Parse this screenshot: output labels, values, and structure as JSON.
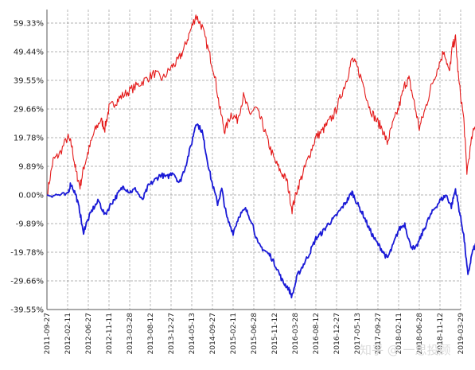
{
  "chart_data": {
    "type": "line",
    "ylim": [
      -39.55,
      64.0
    ],
    "grid": true,
    "yticks": [
      {
        "value": 59.33,
        "label": "59.33%"
      },
      {
        "value": 49.44,
        "label": "49.44%"
      },
      {
        "value": 39.55,
        "label": "39.55%"
      },
      {
        "value": 29.66,
        "label": "29.66%"
      },
      {
        "value": 19.78,
        "label": "19.78%"
      },
      {
        "value": 9.89,
        "label": "9.89%"
      },
      {
        "value": 0.0,
        "label": "0.00%"
      },
      {
        "value": -9.89,
        "label": "-9.89%"
      },
      {
        "value": -19.78,
        "label": "-19.78%"
      },
      {
        "value": -29.66,
        "label": "-29.66%"
      },
      {
        "value": -39.55,
        "label": "-39.55%"
      }
    ],
    "xticks": [
      "2011-09-27",
      "2012-02-11",
      "2012-06-27",
      "2012-11-11",
      "2013-03-28",
      "2013-08-12",
      "2013-12-27",
      "2014-05-13",
      "2014-09-27",
      "2015-02-11",
      "2015-06-28",
      "2015-11-12",
      "2016-03-28",
      "2016-08-12",
      "2016-12-27",
      "2017-05-13",
      "2017-09-27",
      "2018-02-11",
      "2018-06-28",
      "2018-11-12",
      "2019-03-29"
    ],
    "colors": {
      "red_series": "#e41a1a",
      "blue_series": "#1a1ad6",
      "grid": "#9a9a9a",
      "axis": "#555555"
    },
    "series": [
      {
        "color": "#e41a1a",
        "points": [
          [
            0,
            0
          ],
          [
            0.3,
            12
          ],
          [
            0.6,
            14
          ],
          [
            1.0,
            20
          ],
          [
            1.2,
            17
          ],
          [
            1.4,
            8
          ],
          [
            1.6,
            3
          ],
          [
            1.8,
            10
          ],
          [
            2.0,
            15
          ],
          [
            2.3,
            22
          ],
          [
            2.6,
            26
          ],
          [
            2.8,
            23
          ],
          [
            3.0,
            30
          ],
          [
            3.3,
            32
          ],
          [
            3.6,
            34
          ],
          [
            4.0,
            36
          ],
          [
            4.4,
            38
          ],
          [
            4.8,
            40
          ],
          [
            5.2,
            42
          ],
          [
            5.6,
            40
          ],
          [
            6.0,
            44
          ],
          [
            6.3,
            46
          ],
          [
            6.6,
            50
          ],
          [
            6.9,
            56
          ],
          [
            7.2,
            62
          ],
          [
            7.5,
            58
          ],
          [
            7.8,
            50
          ],
          [
            8.1,
            42
          ],
          [
            8.35,
            30
          ],
          [
            8.6,
            22
          ],
          [
            8.9,
            28
          ],
          [
            9.2,
            26
          ],
          [
            9.5,
            34
          ],
          [
            9.8,
            28
          ],
          [
            10.1,
            30
          ],
          [
            10.4,
            25
          ],
          [
            10.7,
            18
          ],
          [
            11.0,
            12
          ],
          [
            11.3,
            8
          ],
          [
            11.6,
            5
          ],
          [
            11.85,
            -5
          ],
          [
            12.1,
            2
          ],
          [
            12.4,
            8
          ],
          [
            12.7,
            14
          ],
          [
            13.0,
            20
          ],
          [
            13.3,
            22
          ],
          [
            13.6,
            25
          ],
          [
            13.9,
            28
          ],
          [
            14.2,
            34
          ],
          [
            14.5,
            40
          ],
          [
            14.75,
            47
          ],
          [
            15.0,
            44
          ],
          [
            15.3,
            38
          ],
          [
            15.6,
            30
          ],
          [
            15.9,
            26
          ],
          [
            16.2,
            23
          ],
          [
            16.45,
            18
          ],
          [
            16.7,
            24
          ],
          [
            17.0,
            30
          ],
          [
            17.3,
            38
          ],
          [
            17.5,
            40
          ],
          [
            17.75,
            32
          ],
          [
            18.0,
            23
          ],
          [
            18.3,
            30
          ],
          [
            18.6,
            38
          ],
          [
            18.9,
            44
          ],
          [
            19.2,
            50
          ],
          [
            19.45,
            42
          ],
          [
            19.6,
            51
          ],
          [
            19.75,
            54
          ],
          [
            19.9,
            40
          ],
          [
            20.15,
            26
          ],
          [
            20.3,
            8
          ],
          [
            20.55,
            20
          ],
          [
            20.8,
            26
          ],
          [
            21.05,
            32
          ]
        ]
      },
      {
        "color": "#1a1ad6",
        "points": [
          [
            0,
            0
          ],
          [
            0.5,
            0
          ],
          [
            1.0,
            0
          ],
          [
            1.15,
            4
          ],
          [
            1.4,
            0
          ],
          [
            1.6,
            -6
          ],
          [
            1.75,
            -13
          ],
          [
            1.9,
            -10
          ],
          [
            2.2,
            -5
          ],
          [
            2.5,
            -2
          ],
          [
            2.8,
            -7
          ],
          [
            3.1,
            -3
          ],
          [
            3.4,
            0
          ],
          [
            3.7,
            3
          ],
          [
            4.0,
            1
          ],
          [
            4.3,
            2
          ],
          [
            4.6,
            -2
          ],
          [
            4.9,
            3
          ],
          [
            5.2,
            5
          ],
          [
            5.5,
            7
          ],
          [
            5.8,
            6
          ],
          [
            6.1,
            8
          ],
          [
            6.4,
            4
          ],
          [
            6.7,
            10
          ],
          [
            7.0,
            18
          ],
          [
            7.2,
            25
          ],
          [
            7.5,
            22
          ],
          [
            7.7,
            14
          ],
          [
            7.95,
            5
          ],
          [
            8.25,
            -3
          ],
          [
            8.45,
            2
          ],
          [
            8.7,
            -8
          ],
          [
            9.0,
            -13
          ],
          [
            9.3,
            -7
          ],
          [
            9.6,
            -5
          ],
          [
            9.9,
            -9
          ],
          [
            10.2,
            -17
          ],
          [
            10.5,
            -19
          ],
          [
            10.8,
            -21
          ],
          [
            11.1,
            -25
          ],
          [
            11.4,
            -30
          ],
          [
            11.65,
            -32
          ],
          [
            11.85,
            -35
          ],
          [
            12.1,
            -28
          ],
          [
            12.4,
            -24
          ],
          [
            12.7,
            -20
          ],
          [
            13.0,
            -15
          ],
          [
            13.3,
            -13
          ],
          [
            13.6,
            -10
          ],
          [
            13.9,
            -8
          ],
          [
            14.2,
            -5
          ],
          [
            14.5,
            -2
          ],
          [
            14.75,
            1
          ],
          [
            15.0,
            -3
          ],
          [
            15.3,
            -7
          ],
          [
            15.6,
            -12
          ],
          [
            15.9,
            -16
          ],
          [
            16.2,
            -19
          ],
          [
            16.45,
            -22
          ],
          [
            16.7,
            -18
          ],
          [
            17.0,
            -12
          ],
          [
            17.3,
            -10
          ],
          [
            17.55,
            -17
          ],
          [
            17.8,
            -19
          ],
          [
            18.1,
            -14
          ],
          [
            18.4,
            -9
          ],
          [
            18.7,
            -5
          ],
          [
            19.0,
            -2
          ],
          [
            19.3,
            0
          ],
          [
            19.55,
            -4
          ],
          [
            19.75,
            2
          ],
          [
            19.95,
            -6
          ],
          [
            20.15,
            -14
          ],
          [
            20.35,
            -28
          ],
          [
            20.55,
            -20
          ],
          [
            20.8,
            -16
          ],
          [
            21.05,
            -15
          ]
        ]
      }
    ]
  },
  "watermark": "知乎 @ 一思投顾"
}
